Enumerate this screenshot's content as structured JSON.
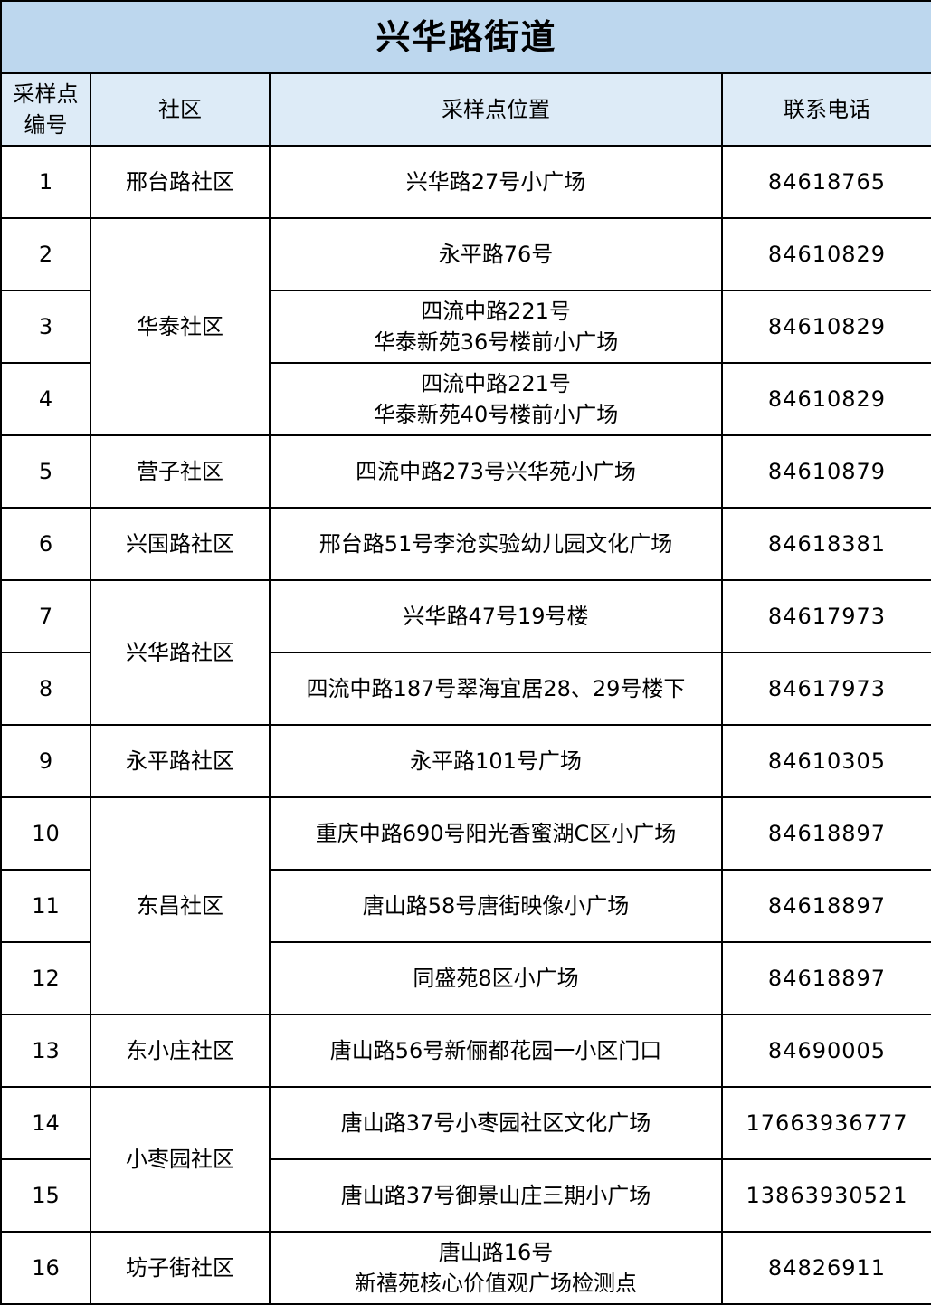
{
  "title": "兴华路街道",
  "colors": {
    "title_bg": "#BDD7EE",
    "header_bg": "#DDEBF7",
    "border": "#000000"
  },
  "headers": [
    "采样点\n编号",
    "社区",
    "采样点位置",
    "联系电话"
  ],
  "rows": [
    {
      "no": "1",
      "community": "邢台路社区",
      "rowspan": 1,
      "location": "兴华路27号小广场",
      "phone": "84618765"
    },
    {
      "no": "2",
      "community": "华泰社区",
      "rowspan": 3,
      "location": "永平路76号",
      "phone": "84610829"
    },
    {
      "no": "3",
      "community": null,
      "location": "四流中路221号\n华泰新苑36号楼前小广场",
      "phone": "84610829"
    },
    {
      "no": "4",
      "community": null,
      "location": "四流中路221号\n华泰新苑40号楼前小广场",
      "phone": "84610829"
    },
    {
      "no": "5",
      "community": "营子社区",
      "rowspan": 1,
      "location": "四流中路273号兴华苑小广场",
      "phone": "84610879"
    },
    {
      "no": "6",
      "community": "兴国路社区",
      "rowspan": 1,
      "location": "邢台路51号李沧实验幼儿园文化广场",
      "phone": "84618381"
    },
    {
      "no": "7",
      "community": "兴华路社区",
      "rowspan": 2,
      "location": "兴华路47号19号楼",
      "phone": "84617973"
    },
    {
      "no": "8",
      "community": null,
      "location": "四流中路187号翠海宜居28、29号楼下",
      "phone": "84617973"
    },
    {
      "no": "9",
      "community": "永平路社区",
      "rowspan": 1,
      "location": "永平路101号广场",
      "phone": "84610305"
    },
    {
      "no": "10",
      "community": "东昌社区",
      "rowspan": 3,
      "location": "重庆中路690号阳光香蜜湖C区小广场",
      "phone": "84618897"
    },
    {
      "no": "11",
      "community": null,
      "location": "唐山路58号唐街映像小广场",
      "phone": "84618897"
    },
    {
      "no": "12",
      "community": null,
      "location": "同盛苑8区小广场",
      "phone": "84618897"
    },
    {
      "no": "13",
      "community": "东小庄社区",
      "rowspan": 1,
      "location": "唐山路56号新俪都花园一小区门口",
      "phone": "84690005"
    },
    {
      "no": "14",
      "community": "小枣园社区",
      "rowspan": 2,
      "location": "唐山路37号小枣园社区文化广场",
      "phone": "17663936777"
    },
    {
      "no": "15",
      "community": null,
      "location": "唐山路37号御景山庄三期小广场",
      "phone": "13863930521"
    },
    {
      "no": "16",
      "community": "坊子街社区",
      "rowspan": 1,
      "location": "唐山路16号\n新禧苑核心价值观广场检测点",
      "phone": "84826911"
    }
  ]
}
